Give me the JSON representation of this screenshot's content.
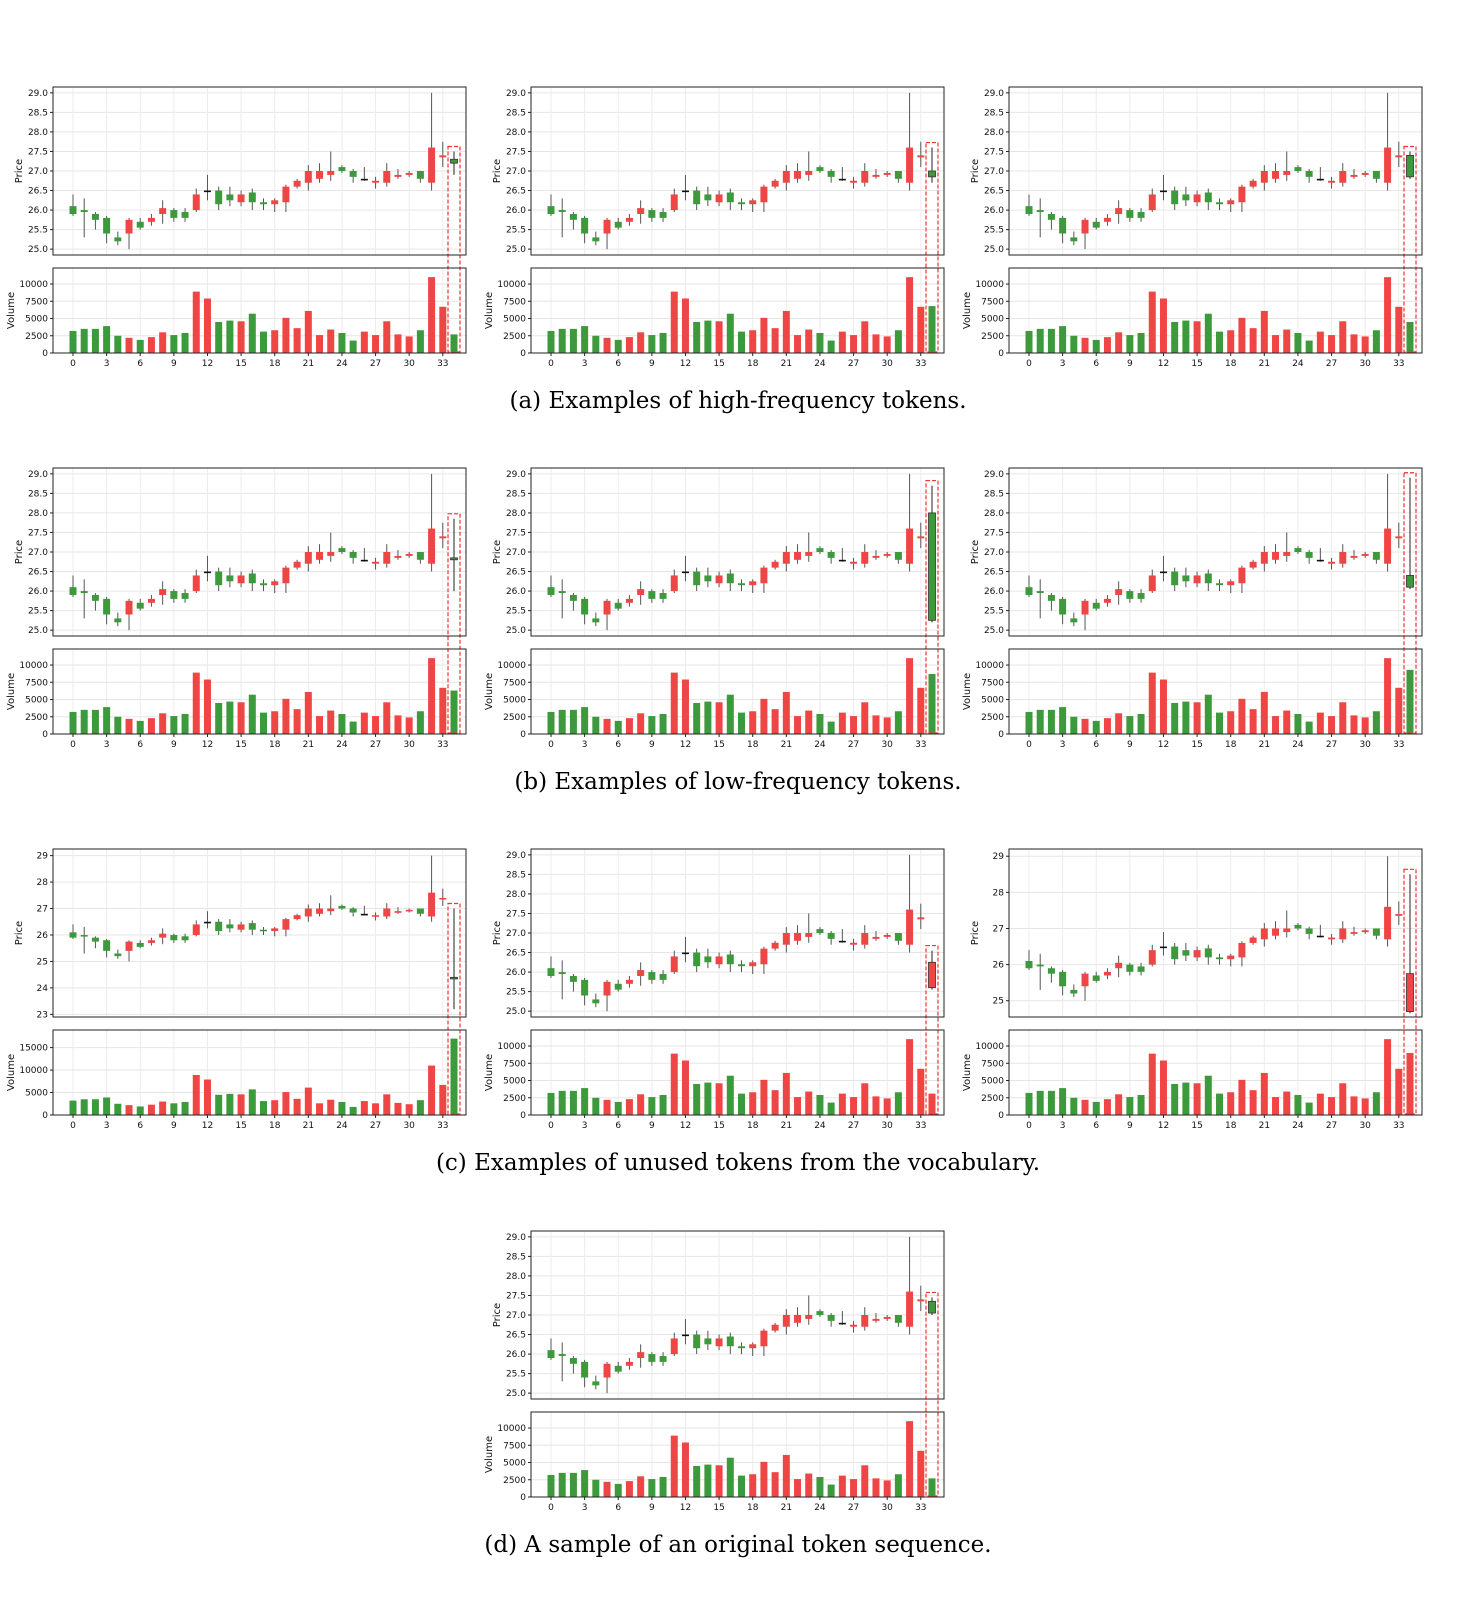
{
  "figure": {
    "captions": {
      "a": "(a) Examples of high-frequency tokens.",
      "b": "(b) Examples of low-frequency tokens.",
      "c": "(c) Examples of unused tokens from the vocabulary.",
      "d": "(d) A sample of an original token sequence."
    }
  },
  "colors": {
    "up": "#f04545",
    "down": "#3c9a3c",
    "highlight": "#ee3333",
    "doji": "#111111"
  },
  "base_sequence": {
    "open": [
      26.1,
      26.0,
      25.9,
      25.8,
      25.3,
      25.4,
      25.7,
      25.7,
      25.9,
      26.0,
      25.95,
      26.0,
      26.5,
      26.5,
      26.4,
      26.2,
      26.45,
      26.2,
      26.15,
      26.2,
      26.6,
      26.7,
      26.8,
      26.9,
      27.1,
      27.0,
      26.8,
      26.7,
      26.7,
      26.85,
      26.9,
      27.0,
      26.7,
      27.35
    ],
    "close": [
      25.9,
      25.95,
      25.75,
      25.4,
      25.2,
      25.75,
      25.55,
      25.8,
      26.05,
      25.8,
      25.8,
      26.4,
      26.5,
      26.15,
      26.25,
      26.4,
      26.2,
      26.15,
      26.25,
      26.6,
      26.75,
      27.0,
      27.0,
      27.0,
      27.0,
      26.85,
      26.8,
      26.75,
      27.0,
      26.9,
      26.95,
      26.8,
      27.6,
      27.4
    ],
    "high": [
      26.4,
      26.3,
      25.95,
      25.85,
      25.45,
      25.8,
      25.8,
      25.9,
      26.25,
      26.05,
      26.05,
      26.55,
      26.9,
      26.6,
      26.6,
      26.5,
      26.55,
      26.3,
      26.3,
      26.65,
      26.8,
      27.15,
      27.2,
      27.5,
      27.15,
      27.05,
      27.1,
      26.85,
      27.2,
      27.05,
      27.0,
      27.0,
      29.0,
      27.75
    ],
    "low": [
      25.85,
      25.3,
      25.5,
      25.15,
      25.1,
      25.0,
      25.5,
      25.6,
      25.65,
      25.7,
      25.7,
      25.95,
      26.25,
      26.0,
      26.1,
      26.1,
      26.0,
      26.0,
      25.95,
      25.95,
      26.55,
      26.5,
      26.7,
      26.75,
      26.95,
      26.7,
      26.75,
      26.55,
      26.6,
      26.8,
      26.85,
      26.7,
      26.5,
      27.1
    ],
    "volume": [
      3200,
      3500,
      3500,
      3900,
      2500,
      2200,
      1900,
      2300,
      3000,
      2600,
      2900,
      8900,
      7900,
      4500,
      4700,
      4600,
      5700,
      3100,
      3300,
      5100,
      3600,
      6100,
      2600,
      3400,
      2900,
      1800,
      3100,
      2600,
      4600,
      2700,
      2400,
      3300,
      11000,
      6700
    ]
  },
  "chart_data": [
    {
      "id": "a1",
      "type": "candlestick",
      "ylabel": "Price",
      "ylabel2": "Volume",
      "yticks": [
        "25.0",
        "25.5",
        "26.0",
        "26.5",
        "27.0",
        "27.5",
        "28.0",
        "28.5",
        "29.0"
      ],
      "ylim": [
        24.85,
        29.15
      ],
      "vticks": [
        "0",
        "2500",
        "5000",
        "7500",
        "10000"
      ],
      "vmax": 11600,
      "xticks": [
        "0",
        "3",
        "6",
        "9",
        "12",
        "15",
        "18",
        "21",
        "24",
        "27",
        "30",
        "33"
      ],
      "last": {
        "open": 27.3,
        "close": 27.2,
        "high": 27.5,
        "low": 26.9,
        "volume": 2700
      }
    },
    {
      "id": "a2",
      "type": "candlestick",
      "ylabel": "Price",
      "ylabel2": "Volume",
      "yticks": [
        "25.0",
        "25.5",
        "26.0",
        "26.5",
        "27.0",
        "27.5",
        "28.0",
        "28.5",
        "29.0"
      ],
      "ylim": [
        24.85,
        29.15
      ],
      "vticks": [
        "0",
        "2500",
        "5000",
        "7500",
        "10000"
      ],
      "vmax": 11600,
      "xticks": [
        "0",
        "3",
        "6",
        "9",
        "12",
        "15",
        "18",
        "21",
        "24",
        "27",
        "30",
        "33"
      ],
      "last": {
        "open": 27.0,
        "close": 26.85,
        "high": 27.6,
        "low": 26.7,
        "volume": 6800
      }
    },
    {
      "id": "a3",
      "type": "candlestick",
      "ylabel": "Price",
      "ylabel2": "Volume",
      "yticks": [
        "25.0",
        "25.5",
        "26.0",
        "26.5",
        "27.0",
        "27.5",
        "28.0",
        "28.5",
        "29.0"
      ],
      "ylim": [
        24.85,
        29.15
      ],
      "vticks": [
        "0",
        "2500",
        "5000",
        "7500",
        "10000"
      ],
      "vmax": 11600,
      "xticks": [
        "0",
        "3",
        "6",
        "9",
        "12",
        "15",
        "18",
        "21",
        "24",
        "27",
        "30",
        "33"
      ],
      "last": {
        "open": 27.4,
        "close": 26.85,
        "high": 27.5,
        "low": 26.8,
        "volume": 4500
      }
    },
    {
      "id": "b1",
      "type": "candlestick",
      "ylabel": "Price",
      "ylabel2": "Volume",
      "yticks": [
        "25.0",
        "25.5",
        "26.0",
        "26.5",
        "27.0",
        "27.5",
        "28.0",
        "28.5",
        "29.0"
      ],
      "ylim": [
        24.85,
        29.15
      ],
      "vticks": [
        "0",
        "2500",
        "5000",
        "7500",
        "10000"
      ],
      "vmax": 11600,
      "xticks": [
        "0",
        "3",
        "6",
        "9",
        "12",
        "15",
        "18",
        "21",
        "24",
        "27",
        "30",
        "33"
      ],
      "last": {
        "open": 26.85,
        "close": 26.8,
        "high": 27.85,
        "low": 26.0,
        "volume": 6300
      }
    },
    {
      "id": "b2",
      "type": "candlestick",
      "ylabel": "Price",
      "ylabel2": "Volume",
      "yticks": [
        "25.0",
        "25.5",
        "26.0",
        "26.5",
        "27.0",
        "27.5",
        "28.0",
        "28.5",
        "29.0"
      ],
      "ylim": [
        24.85,
        29.15
      ],
      "vticks": [
        "0",
        "2500",
        "5000",
        "7500",
        "10000"
      ],
      "vmax": 11600,
      "xticks": [
        "0",
        "3",
        "6",
        "9",
        "12",
        "15",
        "18",
        "21",
        "24",
        "27",
        "30",
        "33"
      ],
      "last": {
        "open": 28.0,
        "close": 25.25,
        "high": 28.7,
        "low": 25.2,
        "volume": 8700
      }
    },
    {
      "id": "b3",
      "type": "candlestick",
      "ylabel": "Price",
      "ylabel2": "Volume",
      "yticks": [
        "25.0",
        "25.5",
        "26.0",
        "26.5",
        "27.0",
        "27.5",
        "28.0",
        "28.5",
        "29.0"
      ],
      "ylim": [
        24.85,
        29.15
      ],
      "vticks": [
        "0",
        "2500",
        "5000",
        "7500",
        "10000"
      ],
      "vmax": 11600,
      "xticks": [
        "0",
        "3",
        "6",
        "9",
        "12",
        "15",
        "18",
        "21",
        "24",
        "27",
        "30",
        "33"
      ],
      "last": {
        "open": 26.4,
        "close": 26.1,
        "high": 28.9,
        "low": 26.05,
        "volume": 9300
      }
    },
    {
      "id": "c1",
      "type": "candlestick",
      "ylabel": "Price",
      "ylabel2": "Volume",
      "yticks": [
        "23",
        "24",
        "25",
        "26",
        "27",
        "28",
        "29"
      ],
      "ylim": [
        22.9,
        29.25
      ],
      "vticks": [
        "0",
        "5000",
        "10000",
        "15000"
      ],
      "vmax": 17800,
      "xticks": [
        "0",
        "3",
        "6",
        "9",
        "12",
        "15",
        "18",
        "21",
        "24",
        "27",
        "30",
        "33"
      ],
      "last": {
        "open": 24.4,
        "close": 24.35,
        "high": 27.0,
        "low": 23.2,
        "volume": 17000
      }
    },
    {
      "id": "c2",
      "type": "candlestick",
      "ylabel": "Price",
      "ylabel2": "Volume",
      "yticks": [
        "25.0",
        "25.5",
        "26.0",
        "26.5",
        "27.0",
        "27.5",
        "28.0",
        "28.5",
        "29.0"
      ],
      "ylim": [
        24.85,
        29.15
      ],
      "vticks": [
        "0",
        "2500",
        "5000",
        "7500",
        "10000"
      ],
      "vmax": 11600,
      "xticks": [
        "0",
        "3",
        "6",
        "9",
        "12",
        "15",
        "18",
        "21",
        "24",
        "27",
        "30",
        "33"
      ],
      "last": {
        "open": 25.6,
        "close": 26.25,
        "high": 26.55,
        "low": 25.55,
        "volume": 3100
      }
    },
    {
      "id": "c3",
      "type": "candlestick",
      "ylabel": "Price",
      "ylabel2": "Volume",
      "yticks": [
        "25",
        "26",
        "27",
        "28",
        "29"
      ],
      "ylim": [
        24.55,
        29.2
      ],
      "vticks": [
        "0",
        "2500",
        "5000",
        "7500",
        "10000"
      ],
      "vmax": 11600,
      "xticks": [
        "0",
        "3",
        "6",
        "9",
        "12",
        "15",
        "18",
        "21",
        "24",
        "27",
        "30",
        "33"
      ],
      "last": {
        "open": 24.7,
        "close": 25.75,
        "high": 28.5,
        "low": 24.65,
        "volume": 9000
      }
    },
    {
      "id": "d1",
      "type": "candlestick",
      "ylabel": "Price",
      "ylabel2": "Volume",
      "yticks": [
        "25.0",
        "25.5",
        "26.0",
        "26.5",
        "27.0",
        "27.5",
        "28.0",
        "28.5",
        "29.0"
      ],
      "ylim": [
        24.85,
        29.15
      ],
      "vticks": [
        "0",
        "2500",
        "5000",
        "7500",
        "10000"
      ],
      "vmax": 11600,
      "xticks": [
        "0",
        "3",
        "6",
        "9",
        "12",
        "15",
        "18",
        "21",
        "24",
        "27",
        "30",
        "33"
      ],
      "last": {
        "open": 27.35,
        "close": 27.05,
        "high": 27.45,
        "low": 27.0,
        "volume": 2700
      }
    }
  ]
}
